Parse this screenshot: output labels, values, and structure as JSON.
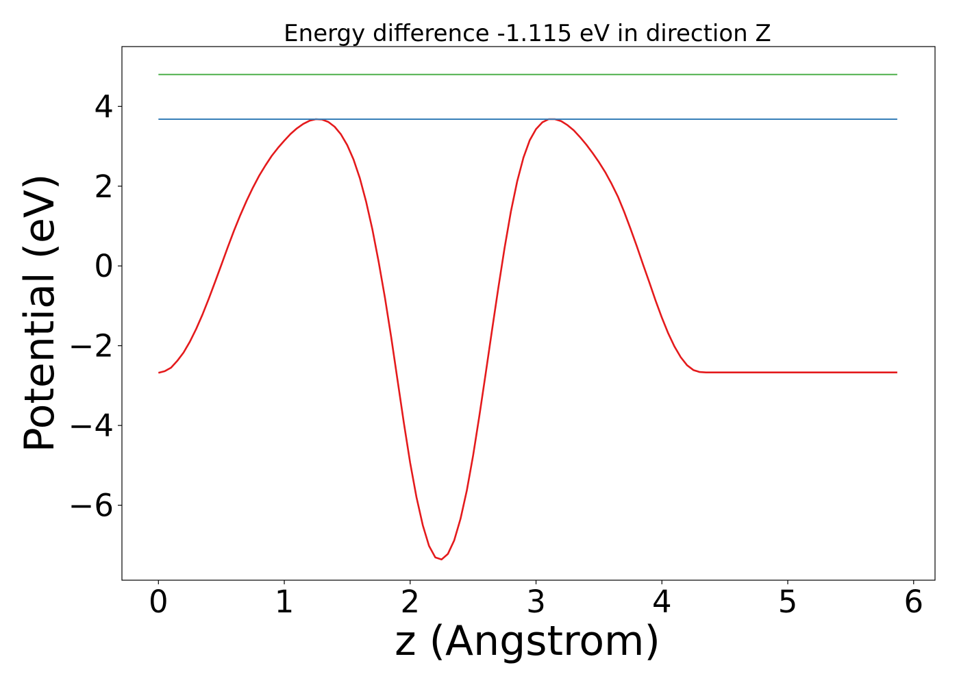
{
  "chart_data": {
    "type": "line",
    "title": "Energy difference -1.115 eV in direction Z",
    "xlabel": "z (Angstrom)",
    "ylabel": "Potential (eV)",
    "xlim": [
      -0.29,
      6.17
    ],
    "ylim": [
      -7.88,
      5.5
    ],
    "xticks": [
      0,
      1,
      2,
      3,
      4,
      5,
      6
    ],
    "xtick_labels": [
      "0",
      "1",
      "2",
      "3",
      "4",
      "5",
      "6"
    ],
    "yticks": [
      -6,
      -4,
      -2,
      0,
      2,
      4
    ],
    "ytick_labels": [
      "−6",
      "−4",
      "−2",
      "0",
      "2",
      "4"
    ],
    "grid": false,
    "legend": "none",
    "series": [
      {
        "color": "#e41a1c",
        "x": [
          0.0,
          0.05,
          0.1,
          0.15,
          0.2,
          0.25,
          0.3,
          0.35,
          0.4,
          0.45,
          0.5,
          0.55,
          0.6,
          0.65,
          0.7,
          0.75,
          0.8,
          0.85,
          0.9,
          0.95,
          1.0,
          1.05,
          1.1,
          1.15,
          1.2,
          1.25,
          1.3,
          1.35,
          1.4,
          1.45,
          1.5,
          1.55,
          1.6,
          1.65,
          1.7,
          1.75,
          1.8,
          1.85,
          1.9,
          1.95,
          2.0,
          2.05,
          2.1,
          2.15,
          2.2,
          2.25,
          2.3,
          2.35,
          2.4,
          2.45,
          2.5,
          2.55,
          2.6,
          2.65,
          2.7,
          2.75,
          2.8,
          2.85,
          2.9,
          2.95,
          3.0,
          3.05,
          3.1,
          3.15,
          3.2,
          3.25,
          3.3,
          3.35,
          3.4,
          3.45,
          3.5,
          3.55,
          3.6,
          3.65,
          3.7,
          3.75,
          3.8,
          3.85,
          3.9,
          3.95,
          4.0,
          4.05,
          4.1,
          4.15,
          4.2,
          4.25,
          4.3,
          4.35,
          4.4,
          4.45,
          4.5,
          4.55,
          4.6,
          4.65,
          4.7,
          4.75,
          4.8,
          4.85,
          4.9,
          4.95,
          5.0,
          5.05,
          5.1,
          5.15,
          5.2,
          5.25,
          5.3,
          5.35,
          5.4,
          5.45,
          5.5,
          5.55,
          5.6,
          5.65,
          5.7,
          5.75,
          5.8,
          5.87
        ],
        "y": [
          -2.68,
          -2.64,
          -2.55,
          -2.38,
          -2.17,
          -1.9,
          -1.58,
          -1.22,
          -0.82,
          -0.4,
          0.03,
          0.46,
          0.88,
          1.27,
          1.63,
          1.96,
          2.26,
          2.52,
          2.76,
          2.96,
          3.14,
          3.31,
          3.45,
          3.56,
          3.64,
          3.68,
          3.67,
          3.61,
          3.49,
          3.3,
          3.03,
          2.67,
          2.2,
          1.61,
          0.91,
          0.1,
          -0.8,
          -1.8,
          -2.87,
          -3.94,
          -4.94,
          -5.8,
          -6.5,
          -7.02,
          -7.31,
          -7.36,
          -7.22,
          -6.88,
          -6.34,
          -5.63,
          -4.75,
          -3.76,
          -2.7,
          -1.62,
          -0.56,
          0.45,
          1.36,
          2.12,
          2.72,
          3.15,
          3.43,
          3.6,
          3.68,
          3.68,
          3.63,
          3.53,
          3.4,
          3.23,
          3.04,
          2.83,
          2.6,
          2.35,
          2.06,
          1.74,
          1.36,
          0.94,
          0.5,
          0.04,
          -0.41,
          -0.87,
          -1.3,
          -1.69,
          -2.02,
          -2.29,
          -2.49,
          -2.61,
          -2.66,
          -2.67,
          -2.67,
          -2.67,
          -2.67,
          -2.67,
          -2.67,
          -2.67,
          -2.67,
          -2.67,
          -2.67,
          -2.67,
          -2.67,
          -2.67,
          -2.67,
          -2.67,
          -2.67,
          -2.67,
          -2.67,
          -2.67,
          -2.67,
          -2.67,
          -2.67,
          -2.67,
          -2.67,
          -2.67,
          -2.67,
          -2.67,
          -2.67,
          -2.67,
          -2.67,
          -2.67
        ]
      },
      {
        "color": "#377eb8",
        "x": [
          0.0,
          5.87
        ],
        "y": [
          3.68,
          3.68
        ]
      },
      {
        "color": "#4daf4a",
        "x": [
          0.0,
          5.87
        ],
        "y": [
          4.8,
          4.8
        ]
      }
    ]
  }
}
